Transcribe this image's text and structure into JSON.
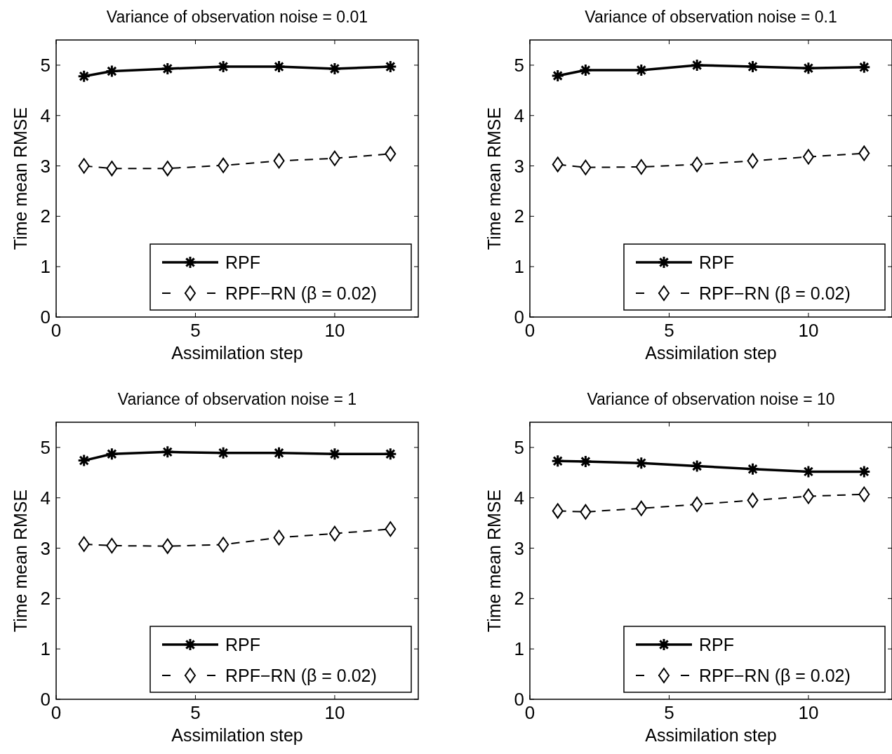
{
  "chart_data": [
    {
      "type": "line",
      "title": "Variance of observation noise = 0.01",
      "xlabel": "Assimilation step",
      "ylabel": "Time mean RMSE",
      "x": [
        1,
        2,
        4,
        6,
        8,
        10,
        12
      ],
      "xlim": [
        0,
        13
      ],
      "xticks": [
        0,
        5,
        10
      ],
      "ylim": [
        0,
        5.5
      ],
      "yticks": [
        0,
        1,
        2,
        3,
        4,
        5
      ],
      "grid": false,
      "legend": "bottom right",
      "series": [
        {
          "name": "RPF",
          "color": "#000000",
          "marker": "cross",
          "line_style": "solid",
          "values": [
            4.78,
            4.88,
            4.93,
            4.97,
            4.97,
            4.93,
            4.97
          ]
        },
        {
          "name": "RPF−RN (β = 0.02)",
          "color": "#000000",
          "marker": "diamond",
          "line_style": "dashed",
          "values": [
            3.0,
            2.95,
            2.95,
            3.01,
            3.1,
            3.15,
            3.24
          ]
        }
      ]
    },
    {
      "type": "line",
      "title": "Variance of observation noise = 0.1",
      "xlabel": "Assimilation step",
      "ylabel": "Time mean RMSE",
      "x": [
        1,
        2,
        4,
        6,
        8,
        10,
        12
      ],
      "xlim": [
        0,
        13
      ],
      "xticks": [
        0,
        5,
        10
      ],
      "ylim": [
        0,
        5.5
      ],
      "yticks": [
        0,
        1,
        2,
        3,
        4,
        5
      ],
      "grid": false,
      "legend": "bottom right",
      "series": [
        {
          "name": "RPF",
          "color": "#000000",
          "marker": "cross",
          "line_style": "solid",
          "values": [
            4.79,
            4.9,
            4.9,
            5.0,
            4.97,
            4.94,
            4.96
          ]
        },
        {
          "name": "RPF−RN (β = 0.02)",
          "color": "#000000",
          "marker": "diamond",
          "line_style": "dashed",
          "values": [
            3.03,
            2.97,
            2.98,
            3.03,
            3.1,
            3.18,
            3.25
          ]
        }
      ]
    },
    {
      "type": "line",
      "title": "Variance of observation noise = 1",
      "xlabel": "Assimilation step",
      "ylabel": "Time mean RMSE",
      "x": [
        1,
        2,
        4,
        6,
        8,
        10,
        12
      ],
      "xlim": [
        0,
        13
      ],
      "xticks": [
        0,
        5,
        10
      ],
      "ylim": [
        0,
        5.5
      ],
      "yticks": [
        0,
        1,
        2,
        3,
        4,
        5
      ],
      "grid": false,
      "legend": "bottom right",
      "series": [
        {
          "name": "RPF",
          "color": "#000000",
          "marker": "cross",
          "line_style": "solid",
          "values": [
            4.74,
            4.87,
            4.91,
            4.89,
            4.89,
            4.87,
            4.87
          ]
        },
        {
          "name": "RPF−RN (β = 0.02)",
          "color": "#000000",
          "marker": "diamond",
          "line_style": "dashed",
          "values": [
            3.08,
            3.05,
            3.04,
            3.07,
            3.21,
            3.29,
            3.38
          ]
        }
      ]
    },
    {
      "type": "line",
      "title": "Variance of observation noise = 10",
      "xlabel": "Assimilation step",
      "ylabel": "Time mean RMSE",
      "x": [
        1,
        2,
        4,
        6,
        8,
        10,
        12
      ],
      "xlim": [
        0,
        13
      ],
      "xticks": [
        0,
        5,
        10
      ],
      "ylim": [
        0,
        5.5
      ],
      "yticks": [
        0,
        1,
        2,
        3,
        4,
        5
      ],
      "grid": false,
      "legend": "bottom right",
      "series": [
        {
          "name": "RPF",
          "color": "#000000",
          "marker": "cross",
          "line_style": "solid",
          "values": [
            4.73,
            4.72,
            4.69,
            4.63,
            4.57,
            4.52,
            4.52
          ]
        },
        {
          "name": "RPF−RN (β = 0.02)",
          "color": "#000000",
          "marker": "diamond",
          "line_style": "dashed",
          "values": [
            3.74,
            3.72,
            3.79,
            3.87,
            3.95,
            4.03,
            4.07
          ]
        }
      ]
    }
  ]
}
